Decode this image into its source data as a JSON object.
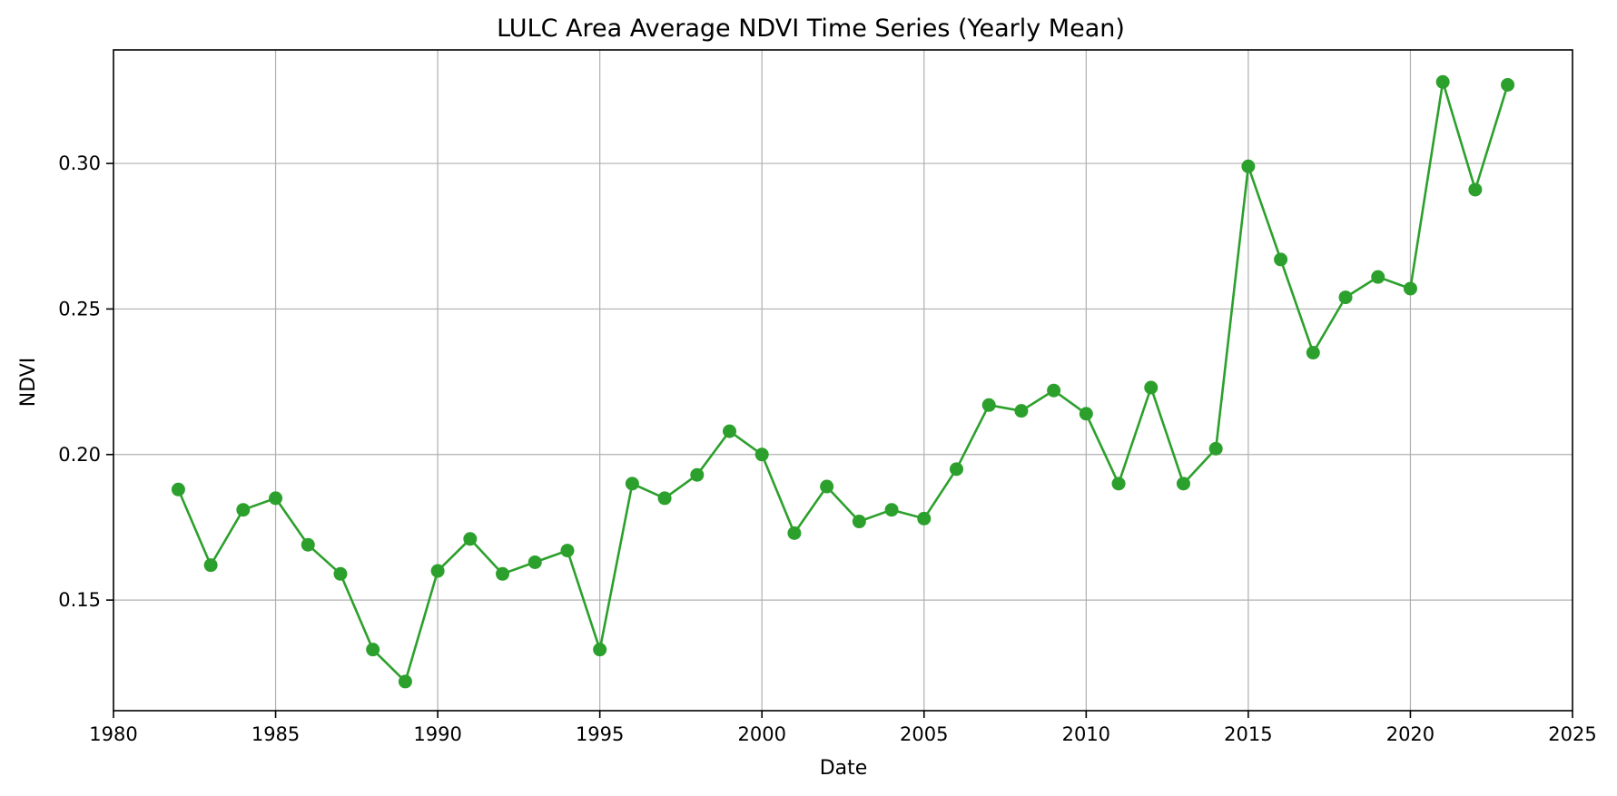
{
  "chart_data": {
    "type": "line",
    "title": "LULC Area Average NDVI Time Series (Yearly Mean)",
    "xlabel": "Date",
    "ylabel": "NDVI",
    "xlim": [
      1980,
      2025
    ],
    "ylim": [
      0.112,
      0.339
    ],
    "xticks": [
      1980,
      1985,
      1990,
      1995,
      2000,
      2005,
      2010,
      2015,
      2020,
      2025
    ],
    "yticks": [
      0.15,
      0.2,
      0.25,
      0.3
    ],
    "ytick_labels": [
      "0.15",
      "0.20",
      "0.25",
      "0.30"
    ],
    "grid": true,
    "color": "#2ca02c",
    "x": [
      1982,
      1983,
      1984,
      1985,
      1986,
      1987,
      1988,
      1989,
      1990,
      1991,
      1992,
      1993,
      1994,
      1995,
      1996,
      1997,
      1998,
      1999,
      2000,
      2001,
      2002,
      2003,
      2004,
      2005,
      2006,
      2007,
      2008,
      2009,
      2010,
      2011,
      2012,
      2013,
      2014,
      2015,
      2016,
      2017,
      2018,
      2019,
      2020,
      2021,
      2022,
      2023
    ],
    "values": [
      0.188,
      0.162,
      0.181,
      0.185,
      0.169,
      0.159,
      0.133,
      0.122,
      0.16,
      0.171,
      0.159,
      0.163,
      0.167,
      0.133,
      0.19,
      0.185,
      0.193,
      0.208,
      0.2,
      0.173,
      0.189,
      0.177,
      0.181,
      0.178,
      0.195,
      0.217,
      0.215,
      0.222,
      0.214,
      0.19,
      0.223,
      0.19,
      0.202,
      0.299,
      0.267,
      0.235,
      0.254,
      0.261,
      0.257,
      0.328,
      0.291,
      0.327
    ]
  }
}
